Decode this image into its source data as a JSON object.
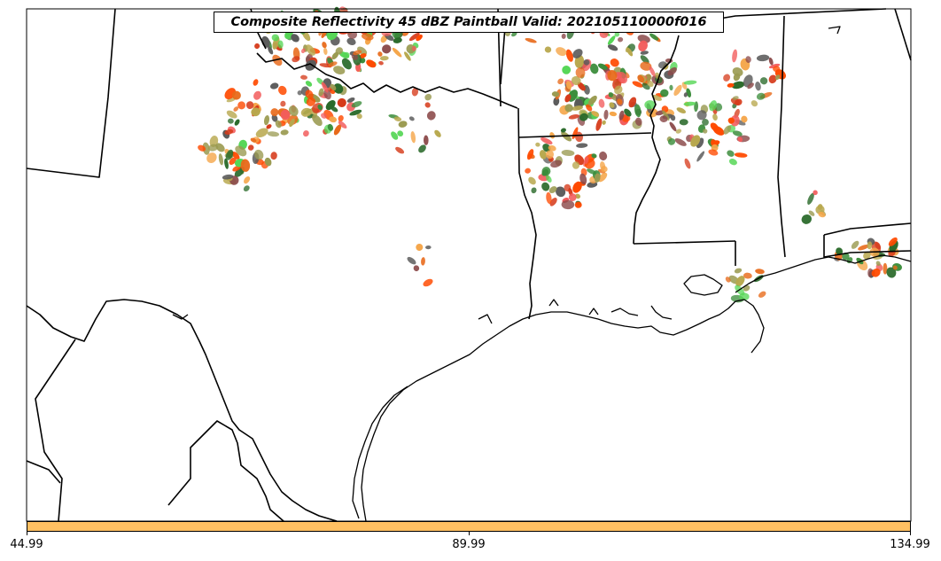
{
  "title": "Composite Reflectivity 45 dBZ Paintball Valid: 202105110000f016",
  "colors": {
    "colorbar_fill": "#FFC062",
    "border": "#000000",
    "background": "#FFFFFF",
    "paintball": [
      "#F25C5C",
      "#FF4A00",
      "#F5A64A",
      "#E86A1A",
      "#B8A84E",
      "#9A9A50",
      "#3A8C3A",
      "#55D655",
      "#8B4A4A",
      "#5A5A5A",
      "#2A6A2A",
      "#D63A1A"
    ]
  },
  "colorbar": {
    "ticks": [
      "44.99",
      "89.99",
      "134.99"
    ]
  }
}
